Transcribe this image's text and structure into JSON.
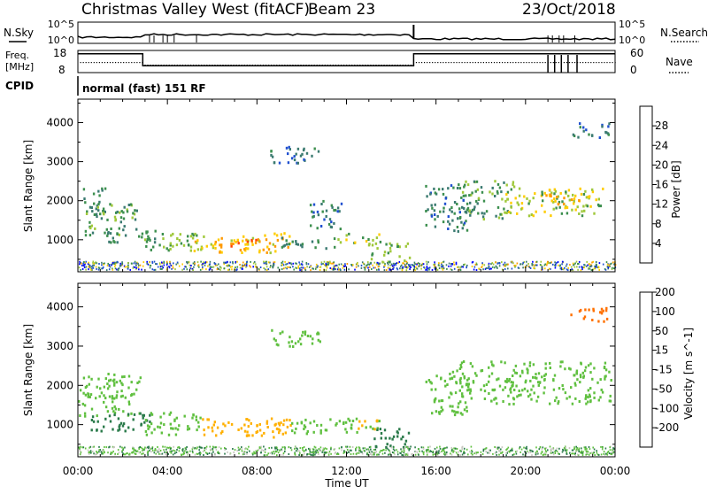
{
  "header": {
    "title": "Christmas Valley West (fitACF)",
    "beam": "Beam 23",
    "date": "23/Oct/2018"
  },
  "left_labels": {
    "nsky": "N.Sky",
    "freq_line1": "Freq.",
    "freq_line2": "[MHz]",
    "cpid": "CPID"
  },
  "right_labels": {
    "nsearch": "N.Search",
    "nave": "Nave"
  },
  "cpid_text": "normal (fast) 151 RF",
  "time_axis": {
    "ticks": [
      "00:00",
      "04:00",
      "08:00",
      "12:00",
      "16:00",
      "20:00",
      "00:00"
    ],
    "label": "Time UT"
  },
  "colors": {
    "power": [
      "#0000ff",
      "#2050d0",
      "#3a7a70",
      "#3c8f4e",
      "#9fc83a",
      "#ffcc00",
      "#ff9900",
      "#ff4400",
      "#ee0000"
    ],
    "velocity": [
      "#2a3fc0",
      "#2a7a4a",
      "#60c040",
      "#c8c8c0",
      "#ffb000",
      "#ff7000",
      "#ee0000"
    ]
  },
  "chart_data": [
    {
      "type": "line",
      "name": "noise-panel",
      "ylabel_left": "N.Sky",
      "ylabel_right": "N.Search",
      "yticks_left": [
        "10^5",
        "10^0"
      ],
      "yticks_right": [
        "10^5",
        "10^0"
      ],
      "x_range_hours": [
        0,
        24
      ]
    },
    {
      "type": "line",
      "name": "frequency-panel",
      "ylabel_left": "Freq. [MHz]",
      "ylabel_right": "Nave",
      "yticks_left": [
        "18",
        "8"
      ],
      "yticks_right": [
        "60",
        "0"
      ],
      "freq_mhz": {
        "x_hours": [
          0,
          2.9,
          2.9,
          15.0,
          15.0,
          24
        ],
        "y": [
          17,
          17,
          10,
          10,
          17,
          17
        ]
      }
    },
    {
      "type": "heatmap",
      "name": "power",
      "ylabel": "Slant Range [km]",
      "yticks": [
        1000,
        2000,
        3000,
        4000
      ],
      "ylim": [
        180,
        4600
      ],
      "xlim_hours": [
        0,
        24
      ],
      "colorbar": {
        "label": "Power [dB]",
        "ticks": [
          4,
          8,
          12,
          16,
          20,
          24,
          28
        ],
        "range": [
          0,
          30
        ]
      },
      "regions": [
        {
          "t": [
            0,
            1.2
          ],
          "r": [
            1700,
            2300
          ],
          "level": 12
        },
        {
          "t": [
            0.3,
            2.7
          ],
          "r": [
            1100,
            1900
          ],
          "level": 14
        },
        {
          "t": [
            1.2,
            3.5
          ],
          "r": [
            900,
            1300
          ],
          "level": 12
        },
        {
          "t": [
            2.9,
            5.5
          ],
          "r": [
            700,
            1200
          ],
          "level": 16
        },
        {
          "t": [
            5.0,
            9.5
          ],
          "r": [
            650,
            1150
          ],
          "level": 22
        },
        {
          "t": [
            6.0,
            8.0
          ],
          "r": [
            720,
            1000
          ],
          "level": 27
        },
        {
          "t": [
            9.0,
            11.5
          ],
          "r": [
            750,
            1050
          ],
          "level": 12
        },
        {
          "t": [
            8.5,
            10.8
          ],
          "r": [
            2950,
            3400
          ],
          "level": 9
        },
        {
          "t": [
            10.3,
            11.8
          ],
          "r": [
            1250,
            2000
          ],
          "level": 10
        },
        {
          "t": [
            11.5,
            13.5
          ],
          "r": [
            850,
            1150
          ],
          "level": 18
        },
        {
          "t": [
            13.0,
            14.8
          ],
          "r": [
            400,
            900
          ],
          "level": 17
        },
        {
          "t": [
            15.5,
            17.5
          ],
          "r": [
            1200,
            2400
          ],
          "level": 10
        },
        {
          "t": [
            17.0,
            19.5
          ],
          "r": [
            1500,
            2500
          ],
          "level": 14
        },
        {
          "t": [
            19.0,
            23.5
          ],
          "r": [
            1600,
            2300
          ],
          "level": 18
        },
        {
          "t": [
            20.5,
            22.5
          ],
          "r": [
            1800,
            2200
          ],
          "level": 23
        },
        {
          "t": [
            22.0,
            23.8
          ],
          "r": [
            3600,
            4000
          ],
          "level": 10
        }
      ]
    },
    {
      "type": "heatmap",
      "name": "velocity",
      "ylabel": "Slant Range [km]",
      "yticks": [
        1000,
        2000,
        3000,
        4000
      ],
      "ylim": [
        180,
        4600
      ],
      "xlim_hours": [
        0,
        24
      ],
      "colorbar": {
        "label": "Velocity [m s^-1]",
        "ticks": [
          200,
          100,
          50,
          15,
          -15,
          -50,
          -100,
          -200
        ],
        "range": [
          -250,
          250
        ]
      },
      "regions": [
        {
          "t": [
            0,
            2.8
          ],
          "r": [
            1200,
            2300
          ],
          "level": 0
        },
        {
          "t": [
            0.5,
            3.2
          ],
          "r": [
            800,
            1300
          ],
          "level": 30
        },
        {
          "t": [
            2.9,
            5.5
          ],
          "r": [
            700,
            1300
          ],
          "level": 0
        },
        {
          "t": [
            5.0,
            9.5
          ],
          "r": [
            650,
            1150
          ],
          "level": -60
        },
        {
          "t": [
            8.5,
            10.8
          ],
          "r": [
            2950,
            3400
          ],
          "level": 0
        },
        {
          "t": [
            9.5,
            13.5
          ],
          "r": [
            750,
            1150
          ],
          "level": 0
        },
        {
          "t": [
            12.5,
            13.5
          ],
          "r": [
            850,
            1100
          ],
          "level": -60
        },
        {
          "t": [
            13.0,
            14.8
          ],
          "r": [
            400,
            900
          ],
          "level": 30
        },
        {
          "t": [
            15.5,
            17.5
          ],
          "r": [
            1200,
            2400
          ],
          "level": 0
        },
        {
          "t": [
            17.0,
            23.8
          ],
          "r": [
            1500,
            2600
          ],
          "level": 0
        },
        {
          "t": [
            22.0,
            23.8
          ],
          "r": [
            3600,
            4000
          ],
          "level": -150
        }
      ]
    }
  ]
}
